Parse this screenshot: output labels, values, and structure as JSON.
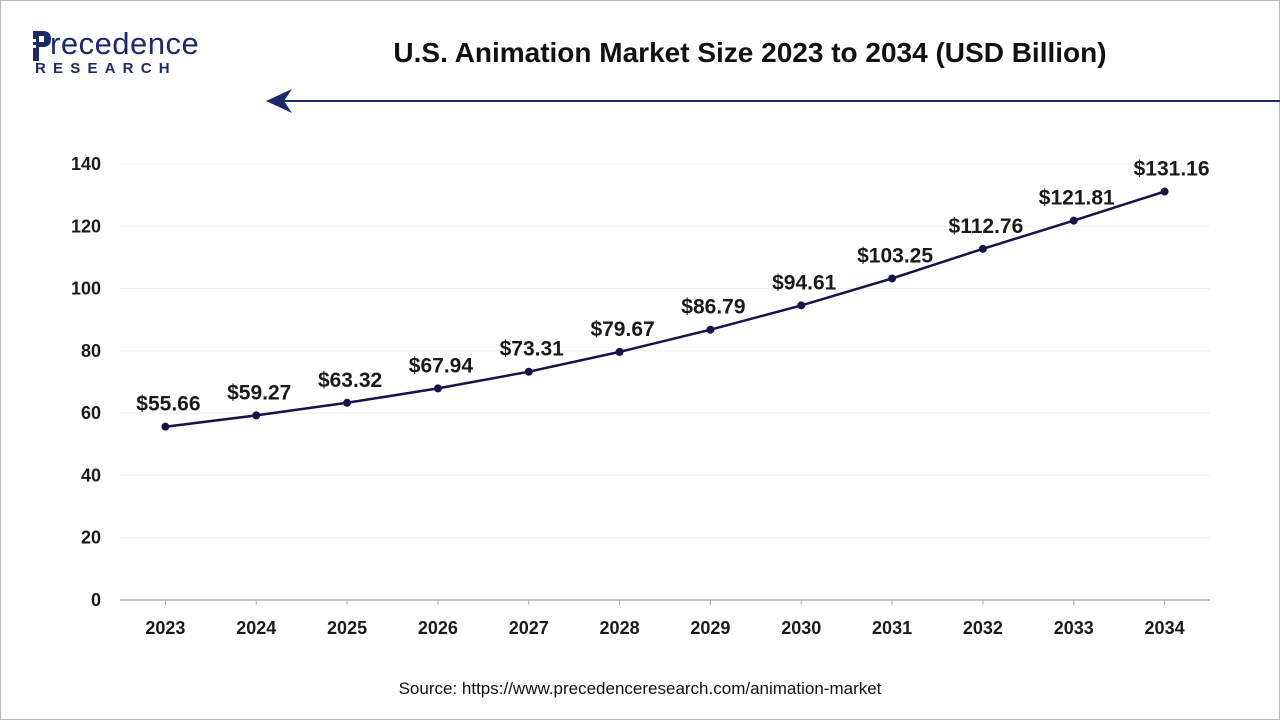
{
  "header": {
    "logo_word": "recedence",
    "logo_sub": "RESEARCH",
    "title": "U.S. Animation Market Size 2023 to 2034 (USD Billion)"
  },
  "colors": {
    "series": "#14134a",
    "arrow": "#1b2a6b",
    "logo": "#1b2a6b",
    "grid": "#eeeeee"
  },
  "chart_data": {
    "type": "line",
    "title": "U.S. Animation Market Size 2023 to 2034 (USD Billion)",
    "xlabel": "",
    "ylabel": "",
    "categories": [
      "2023",
      "2024",
      "2025",
      "2026",
      "2027",
      "2028",
      "2029",
      "2030",
      "2031",
      "2032",
      "2033",
      "2034"
    ],
    "series": [
      {
        "name": "U.S. Animation Market Size",
        "values": [
          55.66,
          59.27,
          63.32,
          67.94,
          73.31,
          79.67,
          86.79,
          94.61,
          103.25,
          112.76,
          121.81,
          131.16
        ],
        "labels": [
          "$55.66",
          "$59.27",
          "$63.32",
          "$67.94",
          "$73.31",
          "$79.67",
          "$86.79",
          "$94.61",
          "$103.25",
          "$112.76",
          "$121.81",
          "$131.16"
        ]
      }
    ],
    "ylim": [
      0,
      140
    ],
    "yticks": [
      "0",
      "20",
      "40",
      "60",
      "80",
      "100",
      "120",
      "140"
    ],
    "grid": true,
    "legend": "none"
  },
  "footer": {
    "source": "Source: https://www.precedenceresearch.com/animation-market"
  }
}
